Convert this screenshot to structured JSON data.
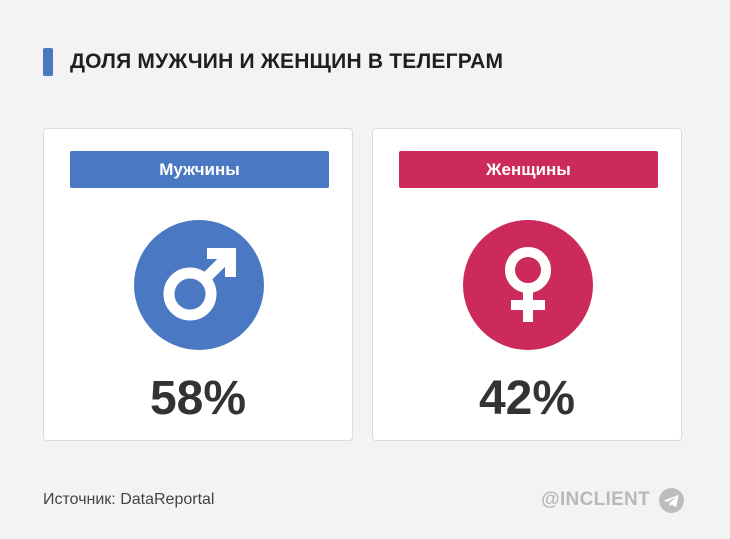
{
  "title": "ДОЛЯ МУЖЧИН И ЖЕНЩИН В ТЕЛЕГРАМ",
  "colors": {
    "accent": "#4a78c2",
    "male": "#4a78c2",
    "female": "#cb2a5a"
  },
  "cards": [
    {
      "label": "Мужчины",
      "icon": "male-symbol-icon",
      "value_text": "58%"
    },
    {
      "label": "Женщины",
      "icon": "female-symbol-icon",
      "value_text": "42%"
    }
  ],
  "chart_data": {
    "type": "bar",
    "title": "ДОЛЯ МУЖЧИН И ЖЕНЩИН В ТЕЛЕГРАМ",
    "categories": [
      "Мужчины",
      "Женщины"
    ],
    "values": [
      58,
      42
    ],
    "unit": "%"
  },
  "footer": {
    "source": "Источник: DataReportal",
    "brand": "@INCLIENT",
    "brand_icon": "telegram-icon"
  }
}
